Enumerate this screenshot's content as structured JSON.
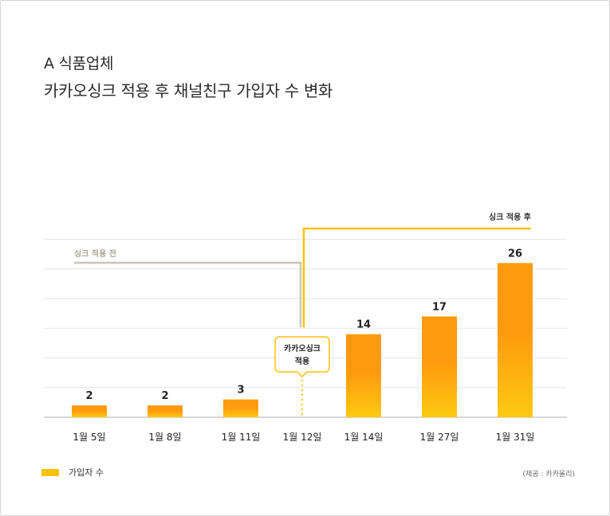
{
  "title_line1": "A 식품업체",
  "title_line2": "카카오싱크 적용 후 채널친구 가입자 수 변화",
  "legend_label": "가입자 수",
  "source": "(제공 : 카카올리)",
  "colors": {
    "bar_top": "#ff9a0e",
    "bar_bottom": "#fdc912",
    "before_line": "#c9c6b6",
    "after_line": "#fbc10b",
    "grid": "#e6e6e6",
    "axis": "#bdbdbd"
  },
  "chart_data": {
    "type": "bar",
    "categories": [
      "1월 5일",
      "1월 8일",
      "1월 11일",
      "1월 12일",
      "1월 14일",
      "1월 27일",
      "1월 31일"
    ],
    "series": [
      {
        "name": "가입자 수",
        "values": [
          2,
          2,
          3,
          null,
          14,
          17,
          26
        ]
      }
    ],
    "data_labels": [
      "2",
      "2",
      "3",
      "",
      "14",
      "17",
      "26"
    ],
    "ylim": [
      0,
      30
    ],
    "grid": true,
    "legend": "bottom-left",
    "annotations": {
      "before": "싱크 적용 전",
      "after": "싱크 적용 후",
      "event_line1": "카카오싱크",
      "event_line2": "적용",
      "event_category": "1월 12일"
    }
  }
}
